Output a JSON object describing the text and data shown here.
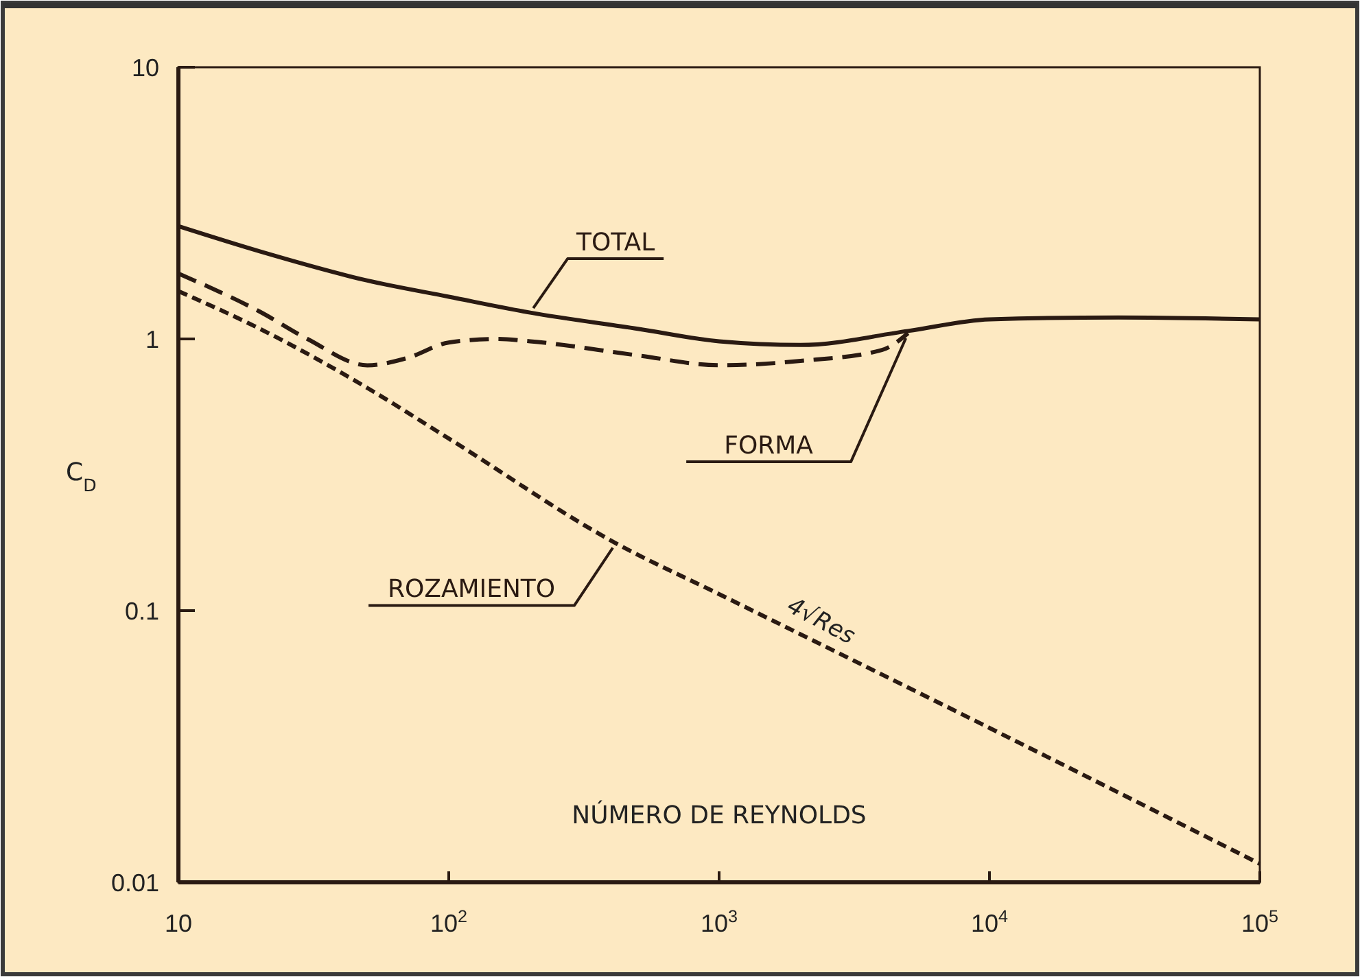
{
  "chart_data": {
    "type": "line",
    "xlabel": "NÚMERO DE REYNOLDS",
    "ylabel": "C$_{D}$",
    "log": "xy",
    "xlim": [
      10,
      100000
    ],
    "ylim": [
      0.01,
      10
    ],
    "xticks": [
      10,
      {
        "value": 100,
        "label": "10$^{2}$"
      },
      {
        "value": 1000,
        "label": "10$^{3}$"
      },
      {
        "value": 10000,
        "label": "10$^{4}$"
      },
      {
        "value": 100000,
        "label": "10$^{5}$"
      }
    ],
    "yticks": [
      0.01,
      0.1,
      1,
      10
    ],
    "legend": false,
    "grid": false,
    "series": [
      {
        "name": "TOTAL",
        "color": "#2a1a12",
        "line_style": "solid",
        "x": [
          10,
          20,
          50,
          100,
          200,
          500,
          1000,
          2000,
          5000,
          10000,
          30000,
          100000
        ],
        "values": [
          2.6,
          2.1,
          1.64,
          1.43,
          1.25,
          1.09,
          0.98,
          0.95,
          1.07,
          1.18,
          1.2,
          1.18
        ]
      },
      {
        "name": "FORMA",
        "color": "#2a1a12",
        "line_style": "dashed",
        "x": [
          10,
          20,
          30,
          50,
          70,
          100,
          150,
          200,
          500,
          1000,
          2000,
          4000,
          5000
        ],
        "values": [
          1.74,
          1.26,
          1.0,
          0.8,
          0.85,
          0.97,
          1.0,
          0.98,
          0.87,
          0.8,
          0.83,
          0.91,
          1.05
        ]
      },
      {
        "name": "ROZAMIENTO",
        "color": "#2a1a12",
        "line_style": "dashed",
        "x": [
          10,
          20,
          50,
          100,
          415,
          1000,
          10000,
          100000
        ],
        "values": [
          1.5,
          1.09,
          0.66,
          0.43,
          0.177,
          0.115,
          0.037,
          0.0117
        ]
      }
    ],
    "annotations": [
      {
        "text": "4√Res",
        "x": 2600,
        "y": 0.072
      }
    ]
  }
}
